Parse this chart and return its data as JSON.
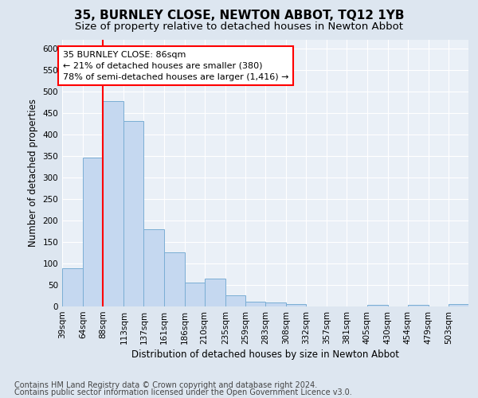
{
  "title": "35, BURNLEY CLOSE, NEWTON ABBOT, TQ12 1YB",
  "subtitle": "Size of property relative to detached houses in Newton Abbot",
  "xlabel": "Distribution of detached houses by size in Newton Abbot",
  "ylabel": "Number of detached properties",
  "footnote1": "Contains HM Land Registry data © Crown copyright and database right 2024.",
  "footnote2": "Contains public sector information licensed under the Open Government Licence v3.0.",
  "annotation_title": "35 BURNLEY CLOSE: 86sqm",
  "annotation_line1": "← 21% of detached houses are smaller (380)",
  "annotation_line2": "78% of semi-detached houses are larger (1,416) →",
  "bar_edges": [
    39,
    64,
    88,
    113,
    137,
    161,
    186,
    210,
    235,
    259,
    283,
    308,
    332,
    357,
    381,
    405,
    430,
    454,
    479,
    503,
    527
  ],
  "bar_values": [
    88,
    346,
    477,
    431,
    180,
    125,
    56,
    65,
    25,
    12,
    9,
    6,
    0,
    0,
    0,
    4,
    0,
    4,
    0,
    5
  ],
  "bar_color": "#c5d8f0",
  "bar_edge_color": "#7aaed4",
  "red_line_x": 88,
  "ylim": [
    0,
    620
  ],
  "yticks": [
    0,
    50,
    100,
    150,
    200,
    250,
    300,
    350,
    400,
    450,
    500,
    550,
    600
  ],
  "background_color": "#dde6f0",
  "plot_bg_color": "#eaf0f7",
  "grid_color": "#ffffff",
  "title_fontsize": 11,
  "subtitle_fontsize": 9.5,
  "axis_label_fontsize": 8.5,
  "tick_fontsize": 7.5,
  "annotation_fontsize": 8,
  "footnote_fontsize": 7
}
